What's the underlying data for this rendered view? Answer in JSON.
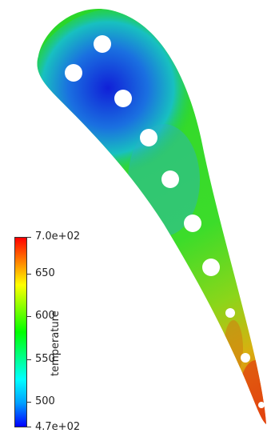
{
  "colorbar": {
    "title": "temperature",
    "range": [
      470,
      700
    ],
    "ticks": [
      {
        "value": 700,
        "label": "7.0e+02"
      },
      {
        "value": 650,
        "label": "650"
      },
      {
        "value": 600,
        "label": "600"
      },
      {
        "value": 550,
        "label": "550"
      },
      {
        "value": 500,
        "label": "500"
      },
      {
        "value": 470,
        "label": "4.7e+02"
      }
    ],
    "colormap": [
      "#0000ff",
      "#00a0ff",
      "#00ffff",
      "#00ff80",
      "#00ff00",
      "#80ff00",
      "#ffff00",
      "#ff8000",
      "#ff0000"
    ]
  },
  "scene": {
    "background": "#ffffff",
    "hole_color": "#ffffff",
    "hole_count": 9
  }
}
